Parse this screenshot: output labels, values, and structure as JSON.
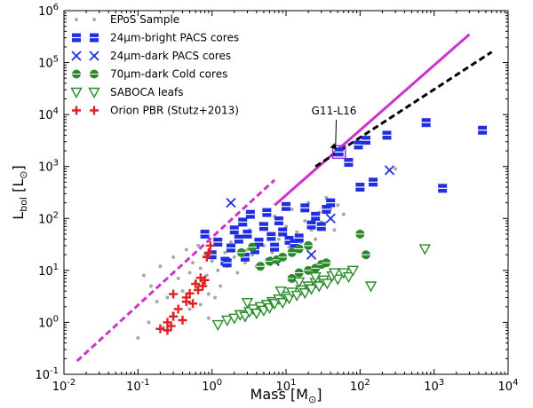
{
  "chart_data": {
    "type": "scatter",
    "xscale": "log",
    "yscale": "log",
    "xlim": [
      0.01,
      10000
    ],
    "ylim": [
      0.1,
      1000000
    ],
    "x_ticks": [
      {
        "value": 0.01,
        "base": "10",
        "exp": "-2"
      },
      {
        "value": 0.1,
        "base": "10",
        "exp": "-1"
      },
      {
        "value": 1,
        "base": "10",
        "exp": "0"
      },
      {
        "value": 10,
        "base": "10",
        "exp": "1"
      },
      {
        "value": 100,
        "base": "10",
        "exp": "2"
      },
      {
        "value": 1000,
        "base": "10",
        "exp": "3"
      },
      {
        "value": 10000,
        "base": "10",
        "exp": "4"
      }
    ],
    "y_ticks": [
      {
        "value": 0.1,
        "base": "10",
        "exp": "-1"
      },
      {
        "value": 1,
        "base": "10",
        "exp": "0"
      },
      {
        "value": 10,
        "base": "10",
        "exp": "1"
      },
      {
        "value": 100,
        "base": "10",
        "exp": "2"
      },
      {
        "value": 1000,
        "base": "10",
        "exp": "3"
      },
      {
        "value": 10000,
        "base": "10",
        "exp": "4"
      },
      {
        "value": 100000,
        "base": "10",
        "exp": "5"
      },
      {
        "value": 1000000,
        "base": "10",
        "exp": "6"
      }
    ],
    "xlabel": {
      "main": "Mass [M",
      "sub": "⊙",
      "end": "]"
    },
    "ylabel": {
      "main": "L",
      "sub": "bol",
      "mid": " [L",
      "sub2": "⊙",
      "end": "]"
    },
    "legend_position": "upper-left",
    "series": [
      {
        "name": "EPoS Sample",
        "marker": "dot",
        "color": "#a9a9a9",
        "points": [
          [
            0.12,
            8
          ],
          [
            0.15,
            5
          ],
          [
            0.2,
            12
          ],
          [
            0.25,
            3
          ],
          [
            0.3,
            18
          ],
          [
            0.35,
            7
          ],
          [
            0.4,
            4
          ],
          [
            0.45,
            25
          ],
          [
            0.5,
            9
          ],
          [
            0.55,
            14
          ],
          [
            0.6,
            6
          ],
          [
            0.65,
            30
          ],
          [
            0.7,
            11
          ],
          [
            0.8,
            20
          ],
          [
            0.85,
            8
          ],
          [
            0.9,
            3.5
          ],
          [
            1.0,
            15
          ],
          [
            1.1,
            40
          ],
          [
            1.2,
            10
          ],
          [
            1.3,
            5
          ],
          [
            1.5,
            22
          ],
          [
            1.6,
            12
          ],
          [
            1.8,
            35
          ],
          [
            2.0,
            18
          ],
          [
            2.2,
            9
          ],
          [
            2.5,
            45
          ],
          [
            2.8,
            14
          ],
          [
            3.0,
            25
          ],
          [
            3.2,
            60
          ],
          [
            3.5,
            20
          ],
          [
            4.0,
            12
          ],
          [
            4.5,
            80
          ],
          [
            5.0,
            30
          ],
          [
            5.5,
            16
          ],
          [
            6.0,
            50
          ],
          [
            6.5,
            22
          ],
          [
            7.0,
            110
          ],
          [
            8.0,
            40
          ],
          [
            9.0,
            18
          ],
          [
            10,
            70
          ],
          [
            11,
            28
          ],
          [
            12,
            150
          ],
          [
            14,
            55
          ],
          [
            16,
            35
          ],
          [
            18,
            90
          ],
          [
            20,
            200
          ],
          [
            22,
            60
          ],
          [
            25,
            40
          ],
          [
            28,
            130
          ],
          [
            30,
            85
          ],
          [
            35,
            250
          ],
          [
            40,
            150
          ],
          [
            45,
            60
          ],
          [
            50,
            180
          ],
          [
            60,
            120
          ],
          [
            0.22,
            0.8
          ],
          [
            0.3,
            1.5
          ],
          [
            0.18,
            2.5
          ],
          [
            0.5,
            1.8
          ],
          [
            0.7,
            2.2
          ],
          [
            1.1,
            3.0
          ],
          [
            0.9,
            1.2
          ],
          [
            300,
            900
          ],
          [
            0.1,
            0.5
          ],
          [
            0.14,
            1.0
          ]
        ]
      },
      {
        "name": "24μm-bright PACS cores",
        "marker": "square-h",
        "color": "#1f2fe0",
        "points": [
          [
            0.8,
            50
          ],
          [
            1.0,
            20
          ],
          [
            1.2,
            35
          ],
          [
            1.5,
            15
          ],
          [
            1.8,
            27
          ],
          [
            2.0,
            60
          ],
          [
            2.3,
            40
          ],
          [
            2.6,
            85
          ],
          [
            3.0,
            50
          ],
          [
            3.3,
            120
          ],
          [
            3.8,
            25
          ],
          [
            4.3,
            35
          ],
          [
            5.0,
            70
          ],
          [
            5.5,
            130
          ],
          [
            6.3,
            45
          ],
          [
            7.0,
            28
          ],
          [
            8.0,
            90
          ],
          [
            9.0,
            55
          ],
          [
            10,
            170
          ],
          [
            11,
            38
          ],
          [
            13,
            33
          ],
          [
            15,
            42
          ],
          [
            18,
            160
          ],
          [
            22,
            75
          ],
          [
            25,
            110
          ],
          [
            30,
            70
          ],
          [
            35,
            150
          ],
          [
            40,
            200
          ],
          [
            52,
            1900
          ],
          [
            70,
            1200
          ],
          [
            95,
            2600
          ],
          [
            100,
            400
          ],
          [
            120,
            3200
          ],
          [
            150,
            500
          ],
          [
            230,
            4000
          ],
          [
            780,
            7000
          ],
          [
            1300,
            380
          ],
          [
            4500,
            5000
          ],
          [
            1.6,
            14
          ],
          [
            2.8,
            18
          ]
        ]
      },
      {
        "name": "24μm-dark PACS cores",
        "marker": "x",
        "color": "#1f2fe0",
        "points": [
          [
            1.8,
            200
          ],
          [
            7.0,
            15
          ],
          [
            22,
            20
          ],
          [
            40,
            100
          ],
          [
            250,
            850
          ]
        ]
      },
      {
        "name": "70μm-dark Cold cores",
        "marker": "circle",
        "color": "#2a8a2a",
        "points": [
          [
            2.5,
            22
          ],
          [
            3.5,
            28
          ],
          [
            4.5,
            12
          ],
          [
            6.0,
            15
          ],
          [
            7.5,
            16
          ],
          [
            9.0,
            18
          ],
          [
            12,
            22
          ],
          [
            15,
            26
          ],
          [
            20,
            30
          ],
          [
            12,
            7
          ],
          [
            15,
            9
          ],
          [
            20,
            10
          ],
          [
            25,
            11
          ],
          [
            30,
            13
          ],
          [
            35,
            14
          ],
          [
            100,
            50
          ],
          [
            120,
            20
          ]
        ]
      },
      {
        "name": "SABOCA leafs",
        "marker": "tri-down",
        "color": "#2a8a2a",
        "points": [
          [
            1.2,
            0.9
          ],
          [
            1.6,
            1.1
          ],
          [
            2.0,
            1.2
          ],
          [
            2.4,
            1.4
          ],
          [
            2.8,
            1.3
          ],
          [
            3.2,
            1.6
          ],
          [
            3.6,
            1.8
          ],
          [
            4.0,
            1.5
          ],
          [
            4.5,
            2.0
          ],
          [
            5.0,
            1.7
          ],
          [
            5.5,
            2.2
          ],
          [
            6.0,
            1.9
          ],
          [
            6.5,
            2.5
          ],
          [
            7.0,
            2.3
          ],
          [
            8.0,
            2.8
          ],
          [
            9.0,
            2.4
          ],
          [
            10,
            3.2
          ],
          [
            11,
            2.9
          ],
          [
            12,
            3.8
          ],
          [
            14,
            3.3
          ],
          [
            16,
            4.2
          ],
          [
            18,
            3.7
          ],
          [
            20,
            5.0
          ],
          [
            22,
            4.4
          ],
          [
            25,
            5.8
          ],
          [
            28,
            5.0
          ],
          [
            32,
            6.5
          ],
          [
            36,
            5.6
          ],
          [
            42,
            7.8
          ],
          [
            50,
            6.8
          ],
          [
            60,
            9.0
          ],
          [
            70,
            7.5
          ],
          [
            80,
            10
          ],
          [
            140,
            5
          ],
          [
            750,
            26
          ],
          [
            3.0,
            2.4
          ],
          [
            8.5,
            4.0
          ],
          [
            15,
            6.0
          ],
          [
            25,
            7.5
          ],
          [
            45,
            9.0
          ]
        ]
      },
      {
        "name": "Orion PBR (Stutz+2013)",
        "marker": "plus",
        "color": "#e02020",
        "points": [
          [
            0.2,
            0.75
          ],
          [
            0.25,
            0.7
          ],
          [
            0.28,
            0.85
          ],
          [
            0.3,
            1.3
          ],
          [
            0.35,
            1.8
          ],
          [
            0.4,
            1.1
          ],
          [
            0.45,
            2.5
          ],
          [
            0.5,
            3.6
          ],
          [
            0.55,
            2.3
          ],
          [
            0.6,
            5.5
          ],
          [
            0.65,
            4.2
          ],
          [
            0.7,
            7.2
          ],
          [
            0.75,
            5.0
          ],
          [
            0.8,
            6.5
          ],
          [
            0.85,
            18
          ],
          [
            0.9,
            22
          ],
          [
            0.95,
            30
          ],
          [
            0.45,
            3.0
          ],
          [
            0.3,
            3.5
          ],
          [
            0.25,
            1.0
          ]
        ]
      }
    ],
    "lines": [
      {
        "name": "magenta-solid",
        "color": "#cc33cc",
        "style": "solid",
        "points": [
          [
            7,
            180
          ],
          [
            3000,
            350000
          ]
        ]
      },
      {
        "name": "magenta-dashed",
        "color": "#cc33cc",
        "style": "dashed",
        "points": [
          [
            0.015,
            0.18
          ],
          [
            7,
            550
          ]
        ]
      },
      {
        "name": "black-dashed",
        "color": "#000000",
        "style": "dashed",
        "points": [
          [
            25,
            1000
          ],
          [
            6000,
            160000
          ]
        ]
      }
    ],
    "annotation": {
      "text": "G11-L16",
      "target": [
        52,
        1900
      ],
      "text_at": [
        22,
        10000
      ]
    }
  }
}
